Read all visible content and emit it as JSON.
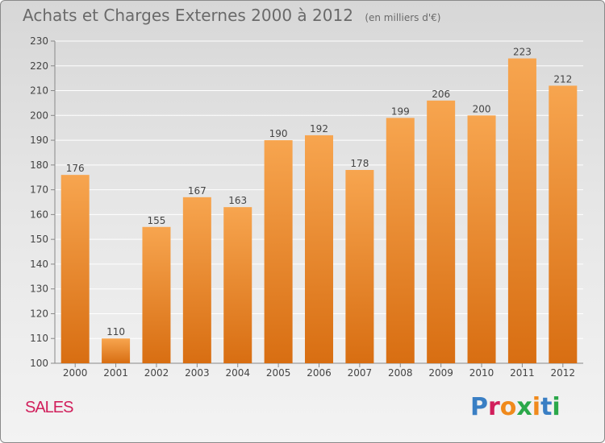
{
  "header": {
    "title": "Achats et Charges Externes 2000 à 2012",
    "subtitle": "(en milliers d'€)"
  },
  "footer": {
    "city": "SALES",
    "brand": "Proxiti"
  },
  "colors": {
    "bar_light": "#f7a54f",
    "bar_dark": "#d86e12",
    "brand_letters": [
      "#3a7fc4",
      "#d11e5b",
      "#f08a1c",
      "#2ba84a",
      "#f08a1c",
      "#3a7fc4",
      "#2ba84a"
    ]
  },
  "chart_data": {
    "type": "bar",
    "title": "Achats et Charges Externes 2000 à 2012",
    "subtitle": "(en milliers d'€)",
    "categories": [
      "2000",
      "2001",
      "2002",
      "2003",
      "2004",
      "2005",
      "2006",
      "2007",
      "2008",
      "2009",
      "2010",
      "2011",
      "2012"
    ],
    "values": [
      176,
      110,
      155,
      167,
      163,
      190,
      192,
      178,
      199,
      206,
      200,
      223,
      212
    ],
    "ylim": [
      100,
      230
    ],
    "yticks": [
      100,
      110,
      120,
      130,
      140,
      150,
      160,
      170,
      180,
      190,
      200,
      210,
      220,
      230
    ],
    "grid": true,
    "legend": "none"
  }
}
